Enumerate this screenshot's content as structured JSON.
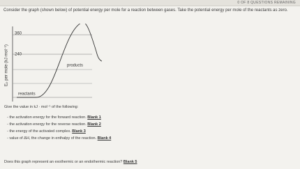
{
  "header": {
    "status": "0 of 8 questions remaining"
  },
  "question": {
    "text": "Consider the graph (shown below) of potential energy per mole for a reaction between gases. Take the potential energy per mole of the reactants as zero."
  },
  "graph": {
    "y_label": "Eₚ per mole (kJ·mol⁻¹)",
    "ticks": [
      "360",
      "240"
    ],
    "products": "products",
    "reactants": "reactants"
  },
  "prompt": "Give the value in kJ · mol⁻¹ of the following:",
  "items": [
    {
      "text": "- the activation energy for the forward reaction.",
      "blank": "Blank 1"
    },
    {
      "text": "- the activation energy for the reverse reaction.",
      "blank": "Blank 2"
    },
    {
      "text": "- the energy of the activated complex.",
      "blank": "Blank 3"
    },
    {
      "text": "- value of ΔH, the change in enthalpy of the reaction.",
      "blank": "Blank 4"
    }
  ],
  "final": {
    "text": "Does this graph represent an exothermic or an endothermic reaction?",
    "blank": "Blank 5"
  }
}
